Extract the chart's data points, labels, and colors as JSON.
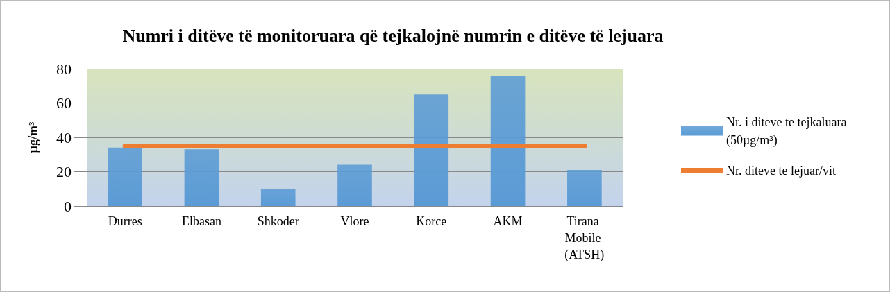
{
  "chart_data": {
    "type": "bar",
    "title": "Numri i ditëve të monitoruara që tejkalojnë numrin e ditëve të lejuara",
    "ylabel": "µg/m³",
    "categories": [
      "Durres",
      "Elbasan",
      "Shkoder",
      "Vlore",
      "Korce",
      "AKM",
      "Tirana Mobile (ATSH)"
    ],
    "series": [
      {
        "name": "Nr. i diteve te tejkaluara (50µg/m³)",
        "color": "#5b9bd5",
        "values": [
          34,
          33,
          10,
          24,
          65,
          76,
          21
        ]
      },
      {
        "name": "Nr. diteve te lejuar/vit",
        "type": "line",
        "color": "#ed7d31",
        "values": [
          35,
          35,
          35,
          35,
          35,
          35,
          35
        ]
      }
    ],
    "ylim": [
      0,
      80
    ],
    "yticks": [
      0,
      20,
      40,
      60,
      80
    ],
    "grid": "y",
    "legend": "right",
    "marker": "none",
    "line_style": "solid"
  }
}
